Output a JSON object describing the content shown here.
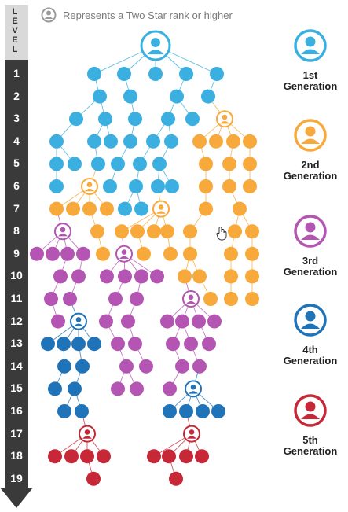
{
  "legend_note": "Represents a Two Star rank or higher",
  "level_header": "LEVEL",
  "levels": [
    "1",
    "2",
    "3",
    "4",
    "5",
    "6",
    "7",
    "8",
    "9",
    "10",
    "11",
    "12",
    "13",
    "14",
    "15",
    "16",
    "17",
    "18",
    "19"
  ],
  "generations": [
    {
      "line1": "1st",
      "line2": "Generation",
      "color": "#3aafe0"
    },
    {
      "line1": "2nd",
      "line2": "Generation",
      "color": "#f7a93b"
    },
    {
      "line1": "3rd",
      "line2": "Generation",
      "color": "#b455b3"
    },
    {
      "line1": "4th",
      "line2": "Generation",
      "color": "#1f73b8"
    },
    {
      "line1": "5th",
      "line2": "Generation",
      "color": "#c62838"
    }
  ],
  "icons": {
    "two_star": "person-ring-icon",
    "cursor": "hand-cursor-icon"
  }
}
